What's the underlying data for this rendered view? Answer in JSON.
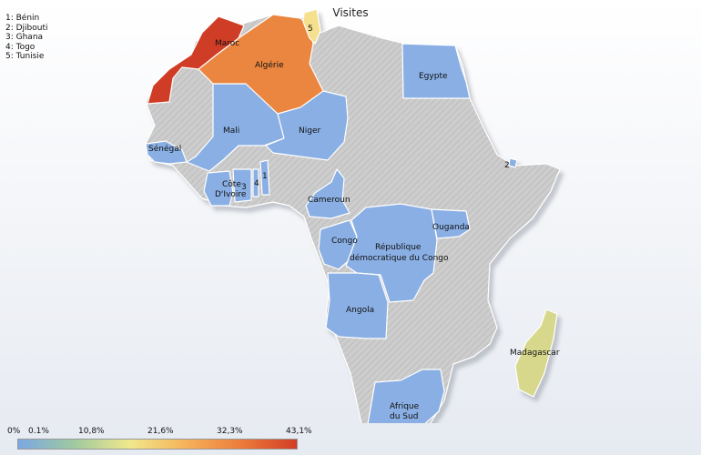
{
  "title": "Visites",
  "legend": [
    "1: Bénin",
    "2: Djibouti",
    "3: Ghana",
    "4: Togo",
    "5: Tunisie"
  ],
  "scale": {
    "labels": [
      "0%",
      "0.1%",
      "10,8%",
      "21,6%",
      "32,3%",
      "43,1%"
    ],
    "colors": [
      "#7ba7e3",
      "#9fc99f",
      "#f0e88c",
      "#f6b25a",
      "#ec7c3a",
      "#d23c26"
    ]
  },
  "colors": {
    "none": "#cccccc",
    "hatch": "#b8b8b8",
    "border": "#ffffff",
    "low": "#8aafe4",
    "madagascar": "#d8d88c",
    "tunisie": "#f5e08e",
    "algerie": "#ea8640",
    "maroc": "#d03c26"
  },
  "chart_data": {
    "type": "choropleth",
    "metric": "Visites",
    "scale_range": [
      "0%",
      "43,1%"
    ],
    "countries": [
      {
        "name": "Maroc",
        "share_band": "32,3% – 43,1%"
      },
      {
        "name": "Algérie",
        "share_band": "21,6% – 32,3%"
      },
      {
        "name": "Tunisie",
        "share_band": "10,8% – 21,6%"
      },
      {
        "name": "Madagascar",
        "share_band": "0.1% – 10,8%"
      },
      {
        "name": "Égypte",
        "share_band": "0% – 0.1%"
      },
      {
        "name": "Mali",
        "share_band": "0% – 0.1%"
      },
      {
        "name": "Niger",
        "share_band": "0% – 0.1%"
      },
      {
        "name": "Sénégal",
        "share_band": "0% – 0.1%"
      },
      {
        "name": "Côte d'Ivoire",
        "share_band": "0% – 0.1%"
      },
      {
        "name": "Ghana",
        "share_band": "0% – 0.1%"
      },
      {
        "name": "Togo",
        "share_band": "0% – 0.1%"
      },
      {
        "name": "Bénin",
        "share_band": "0% – 0.1%"
      },
      {
        "name": "Cameroun",
        "share_band": "0% – 0.1%"
      },
      {
        "name": "Congo",
        "share_band": "0% – 0.1%"
      },
      {
        "name": "République démocratique du Congo",
        "share_band": "0% – 0.1%"
      },
      {
        "name": "Ouganda",
        "share_band": "0% – 0.1%"
      },
      {
        "name": "Djibouti",
        "share_band": "0% – 0.1%"
      },
      {
        "name": "Angola",
        "share_band": "0% – 0.1%"
      },
      {
        "name": "Afrique du Sud",
        "share_band": "0% – 0.1%"
      }
    ]
  },
  "labels": {
    "maroc": "Maroc",
    "algerie": "Algérie",
    "tunisie": "5",
    "egypte": "Egypte",
    "mali": "Mali",
    "niger": "Niger",
    "senegal": "Sénégal",
    "cote_line1": "Côte",
    "cote_line2": "D'Ivoire",
    "ghana": "3",
    "togo": "4",
    "benin": "1",
    "djibouti": "2",
    "cameroun": "Cameroun",
    "congo": "Congo",
    "rdc_line1": "République",
    "rdc_line2": "démocratique du Congo",
    "ouganda": "Ouganda",
    "angola": "Angola",
    "madagascar": "Madagascar",
    "afrique_line1": "Afrique",
    "afrique_line2": "du Sud"
  }
}
